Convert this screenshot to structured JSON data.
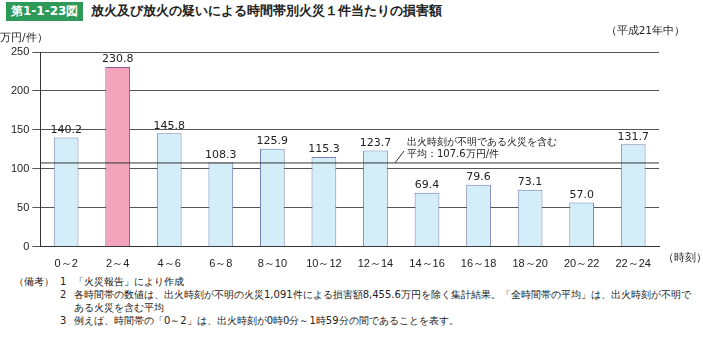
{
  "chart_data": {
    "type": "bar",
    "figure_label": "第1-1-23図",
    "title": "放火及び放火の疑いによる時間帯別火災１件当たりの損害額",
    "subtitle": "（平成21年中）",
    "y_label": "（万円/件）",
    "x_label": "（時刻）",
    "categories": [
      "0～2",
      "2～4",
      "4～6",
      "6～8",
      "8～10",
      "10～12",
      "12～14",
      "14～16",
      "16～18",
      "18～20",
      "20～22",
      "22～24"
    ],
    "values": [
      140.2,
      230.8,
      145.8,
      108.3,
      125.9,
      115.3,
      123.7,
      69.4,
      79.6,
      73.1,
      57.0,
      131.7
    ],
    "value_labels": [
      "140.2",
      "230.8",
      "145.8",
      "108.3",
      "125.9",
      "115.3",
      "123.7",
      "69.4",
      "79.6",
      "73.1",
      "57.0",
      "131.7"
    ],
    "colors": [
      "#d4eef9",
      "#f4a3bd",
      "#d4eef9",
      "#d4eef9",
      "#d4eef9",
      "#d4eef9",
      "#d4eef9",
      "#d4eef9",
      "#d4eef9",
      "#d4eef9",
      "#d4eef9",
      "#d4eef9"
    ],
    "average": {
      "value": 107.6,
      "label": [
        "出火時刻が不明である火災を含む",
        "平均：107.6万円/件"
      ]
    },
    "ylim": [
      0,
      250
    ],
    "yticks": [
      0,
      50,
      100,
      150,
      200,
      250
    ],
    "grid": true,
    "data_labels": true
  },
  "notes": {
    "heading": "（備考）",
    "items": [
      {
        "number": "1",
        "text": "「火災報告」により作成"
      },
      {
        "number": "2",
        "text": "各時間帯の数値は、出火時刻が不明の火災1,091件による損害額8,455.6万円を除く集計結果。「全時間帯の平均」は、出火時刻が不明である火災を含む平均"
      },
      {
        "number": "3",
        "text": "例えば、時間帯の「0～2」は、出火時刻が0時0分～1時59分の間であることを表す。"
      }
    ]
  }
}
